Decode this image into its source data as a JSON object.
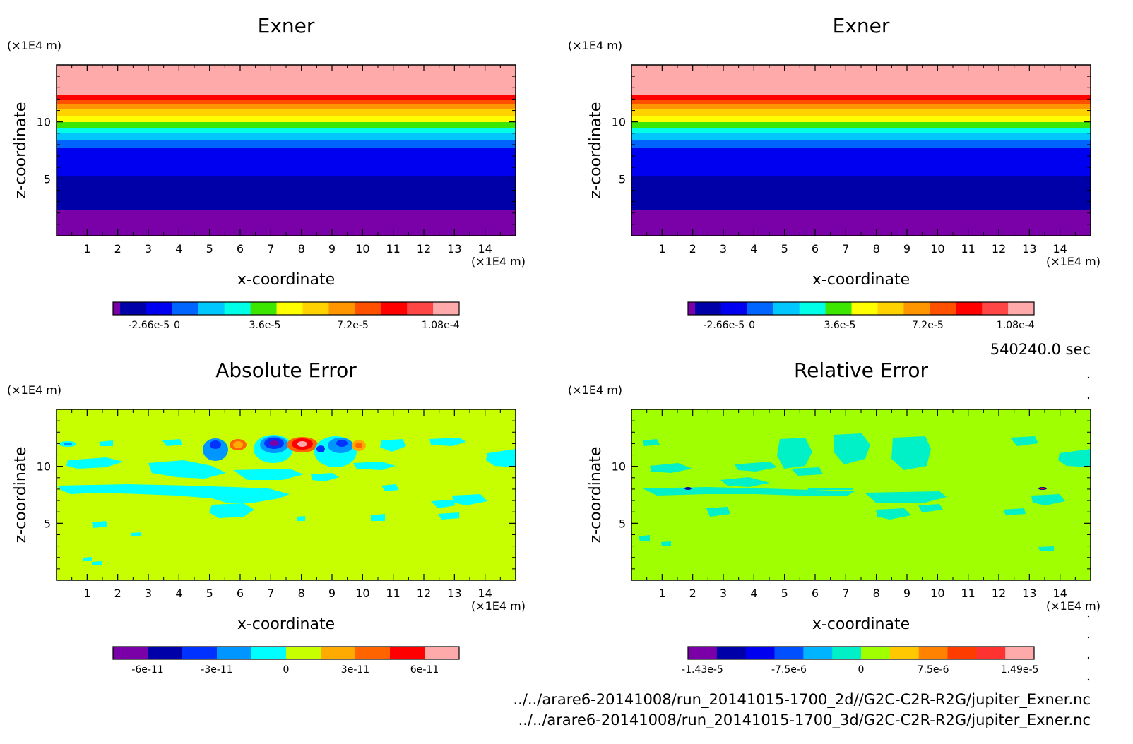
{
  "time_label": "540240.0 sec",
  "files": [
    "../../arare6-20141008/run_20141015-1700_2d//G2C-C2R-R2G/jupiter_Exner.nc",
    "../../arare6-20141008/run_20141015-1700_3d/G2C-C2R-R2G/jupiter_Exner.nc"
  ],
  "chart_data": [
    {
      "type": "heatmap",
      "title": "Exner",
      "xlabel": "x-coordinate",
      "ylabel": "z-coordinate",
      "x_unit": "(×1E4 m)",
      "z_unit": "(×1E4 m)",
      "xlim": [
        0,
        15
      ],
      "zlim": [
        0,
        15
      ],
      "xticks": [
        1,
        2,
        3,
        4,
        5,
        6,
        7,
        8,
        9,
        10,
        11,
        12,
        13,
        14
      ],
      "zticks": [
        5,
        10
      ],
      "colorbar": {
        "colors": [
          "#7a00a8",
          "#0000a8",
          "#0000f0",
          "#0064ff",
          "#00c8ff",
          "#00ffe6",
          "#3ce600",
          "#ffff00",
          "#ffd200",
          "#ff9600",
          "#ff5000",
          "#ff0000",
          "#ff4646",
          "#ffaaaa"
        ],
        "tick_labels": [
          "-2.66e-5",
          "0",
          "3.6e-5",
          "7.2e-5",
          "1.08e-4"
        ]
      }
    },
    {
      "type": "heatmap",
      "title": "Exner",
      "xlabel": "x-coordinate",
      "ylabel": "z-coordinate",
      "x_unit": "(×1E4 m)",
      "z_unit": "(×1E4 m)",
      "xlim": [
        0,
        15
      ],
      "zlim": [
        0,
        15
      ],
      "xticks": [
        1,
        2,
        3,
        4,
        5,
        6,
        7,
        8,
        9,
        10,
        11,
        12,
        13,
        14
      ],
      "zticks": [
        5,
        10
      ],
      "colorbar": {
        "colors": [
          "#7a00a8",
          "#0000a8",
          "#0000f0",
          "#0064ff",
          "#00c8ff",
          "#00ffe6",
          "#3ce600",
          "#ffff00",
          "#ffd200",
          "#ff9600",
          "#ff5000",
          "#ff0000",
          "#ff4646",
          "#ffaaaa"
        ],
        "tick_labels": [
          "-2.66e-5",
          "0",
          "3.6e-5",
          "7.2e-5",
          "1.08e-4"
        ]
      }
    },
    {
      "type": "heatmap",
      "title": "Absolute Error",
      "xlabel": "x-coordinate",
      "ylabel": "z-coordinate",
      "x_unit": "(×1E4 m)",
      "z_unit": "(×1E4 m)",
      "xlim": [
        0,
        15
      ],
      "zlim": [
        0,
        15
      ],
      "xticks": [
        1,
        2,
        3,
        4,
        5,
        6,
        7,
        8,
        9,
        10,
        11,
        12,
        13,
        14
      ],
      "zticks": [
        5,
        10
      ],
      "colorbar": {
        "colors": [
          "#7a00a8",
          "#0000a8",
          "#0032ff",
          "#0096ff",
          "#00ffff",
          "#c8ff00",
          "#ffaa00",
          "#ff6400",
          "#ff0000",
          "#ffaaaa"
        ],
        "tick_labels": [
          "-6e-11",
          "-3e-11",
          "0",
          "3e-11",
          "6e-11"
        ]
      }
    },
    {
      "type": "heatmap",
      "title": "Relative Error",
      "xlabel": "x-coordinate",
      "ylabel": "z-coordinate",
      "x_unit": "(×1E4 m)",
      "z_unit": "(×1E4 m)",
      "xlim": [
        0,
        15
      ],
      "zlim": [
        0,
        15
      ],
      "xticks": [
        1,
        2,
        3,
        4,
        5,
        6,
        7,
        8,
        9,
        10,
        11,
        12,
        13,
        14
      ],
      "zticks": [
        5,
        10
      ],
      "colorbar": {
        "colors": [
          "#7a00a8",
          "#0000a8",
          "#0000f0",
          "#0050ff",
          "#00b4ff",
          "#00f0c8",
          "#a0ff00",
          "#ffc800",
          "#ff8200",
          "#ff3c00",
          "#ff3232",
          "#ffaaaa"
        ],
        "tick_labels": [
          "-1.43e-5",
          "-7.5e-6",
          "0",
          "7.5e-6",
          "1.49e-5"
        ]
      }
    }
  ]
}
